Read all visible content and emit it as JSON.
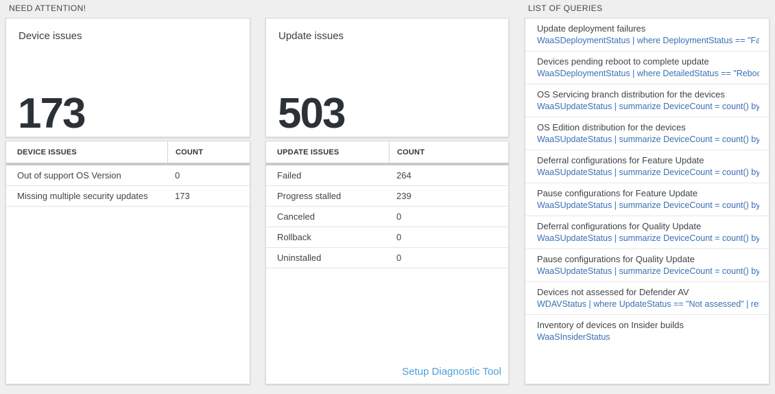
{
  "colors": {
    "page_background": "#efefef",
    "card_background": "#ffffff",
    "card_border": "#d9d9d9",
    "thick_divider_bar": "#c6cacd",
    "big_number_text": "#2b3137",
    "query_link_blue": "#3a70b4",
    "setup_link_blue": "#4f9fd8"
  },
  "need_attention": {
    "label": "NEED ATTENTION!",
    "device_card": {
      "title": "Device issues",
      "count": "173"
    },
    "update_card": {
      "title": "Update issues",
      "count": "503"
    },
    "device_table": {
      "headers": [
        "DEVICE ISSUES",
        "COUNT"
      ],
      "rows": [
        [
          "Out of support OS Version",
          "0"
        ],
        [
          "Missing multiple security updates",
          "173"
        ]
      ]
    },
    "update_table": {
      "headers": [
        "UPDATE ISSUES",
        "COUNT"
      ],
      "rows": [
        [
          "Failed",
          "264"
        ],
        [
          "Progress stalled",
          "239"
        ],
        [
          "Canceled",
          "0"
        ],
        [
          "Rollback",
          "0"
        ],
        [
          "Uninstalled",
          "0"
        ]
      ],
      "footer_link": "Setup Diagnostic Tool"
    }
  },
  "queries": {
    "label": "LIST OF QUERIES",
    "items": [
      {
        "title": "Update deployment failures",
        "query": "WaaSDeploymentStatus | where DeploymentStatus == \"Failed\" |..."
      },
      {
        "title": "Devices pending reboot to complete update",
        "query": "WaaSDeploymentStatus | where DetailedStatus == \"Reboot pend..."
      },
      {
        "title": "OS Servicing branch distribution for the devices",
        "query": "WaaSUpdateStatus | summarize DeviceCount = count() by OSSer..."
      },
      {
        "title": "OS Edition distribution for the devices",
        "query": "WaaSUpdateStatus | summarize DeviceCount = count() by OSEdit..."
      },
      {
        "title": "Deferral configurations for Feature Update",
        "query": "WaaSUpdateStatus | summarize DeviceCount = count() by Featur..."
      },
      {
        "title": "Pause configurations for Feature Update",
        "query": "WaaSUpdateStatus | summarize DeviceCount = count() by Featur..."
      },
      {
        "title": "Deferral configurations for Quality Update",
        "query": "WaaSUpdateStatus | summarize DeviceCount = count() by Qualit..."
      },
      {
        "title": "Pause configurations for Quality Update",
        "query": "WaaSUpdateStatus | summarize DeviceCount = count() by Qualit..."
      },
      {
        "title": "Devices not assessed for Defender AV",
        "query": "WDAVStatus | where UpdateStatus == \"Not assessed\" | render ta..."
      },
      {
        "title": "Inventory of devices on Insider builds",
        "query": "WaaSInsiderStatus"
      }
    ]
  }
}
